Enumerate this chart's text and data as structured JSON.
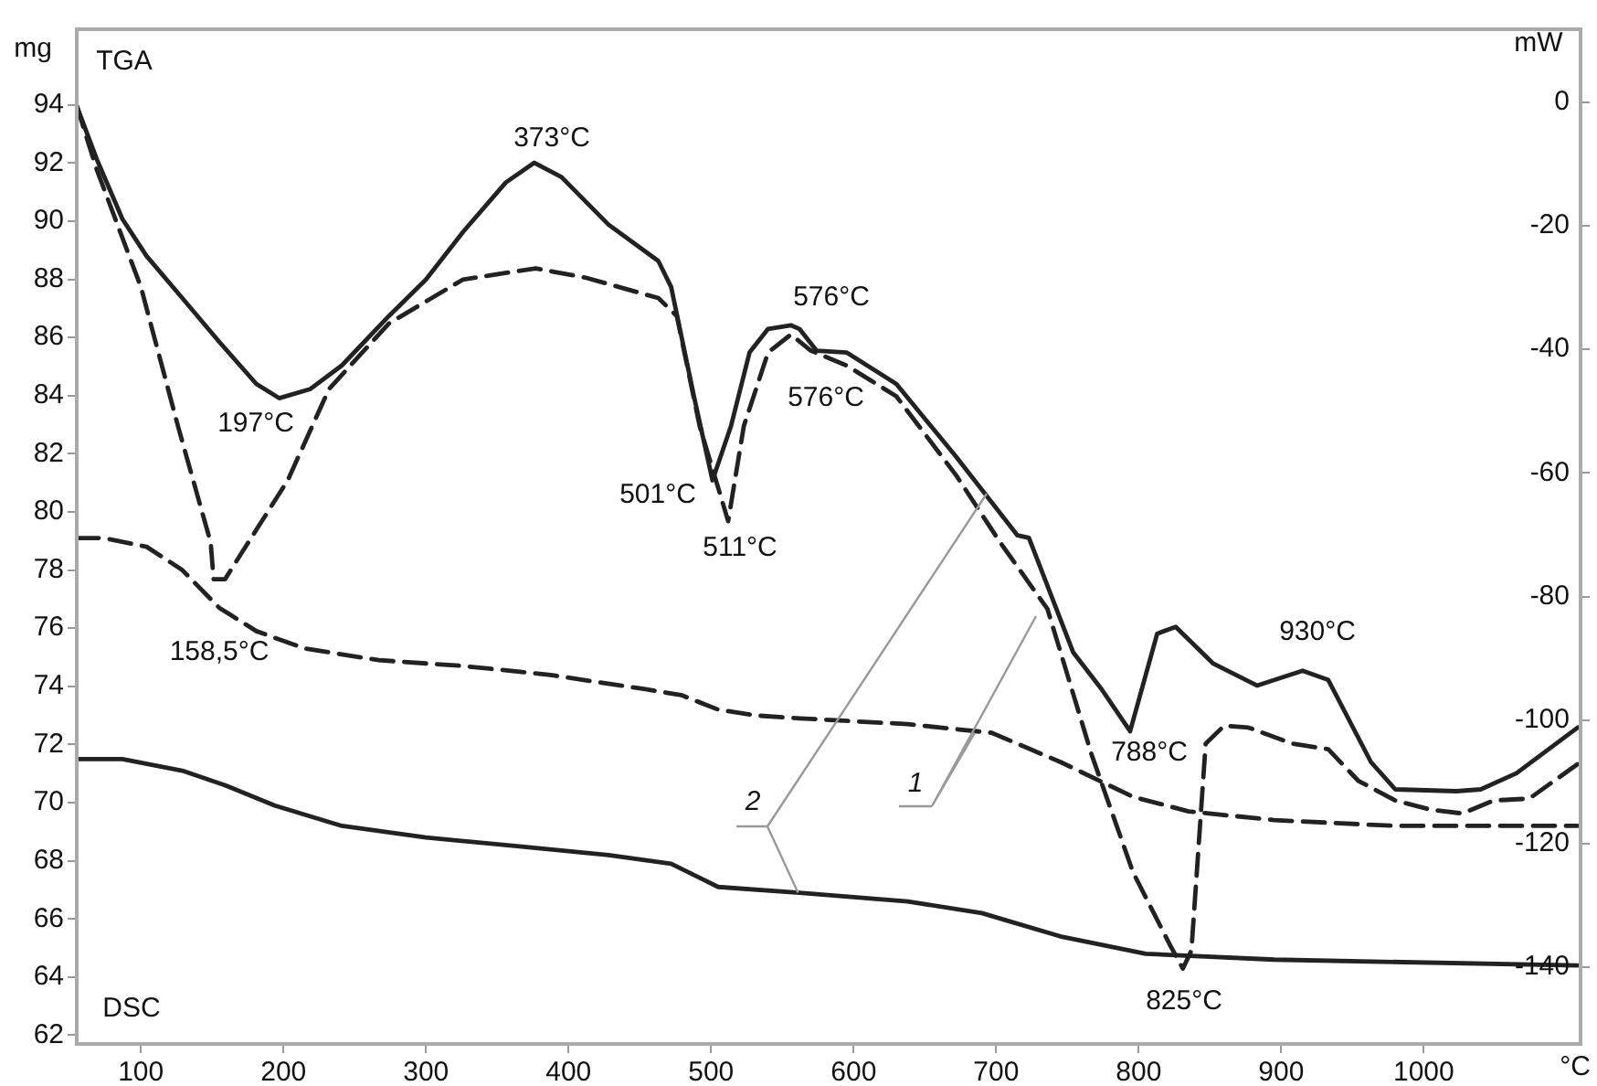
{
  "chart_data": {
    "type": "line",
    "xlabel": "°C",
    "ylabel": "mg",
    "y2label": "mW",
    "xlim": [
      55,
      1110
    ],
    "xticks": [
      100,
      200,
      300,
      400,
      500,
      600,
      700,
      800,
      900,
      1000
    ],
    "ylim": [
      61.7,
      96.6
    ],
    "yticks": [
      62,
      64,
      66,
      68,
      70,
      72,
      74,
      76,
      78,
      80,
      82,
      84,
      86,
      88,
      90,
      92,
      94
    ],
    "y2lim": [
      -152.4,
      11.8
    ],
    "y2ticks": [
      -140,
      -120,
      -100,
      -80,
      -60,
      -40,
      -20,
      0
    ],
    "grid": false,
    "legend": false,
    "marker": "none",
    "series": [
      {
        "color": "#222222",
        "axis": "y2",
        "line_style": "solid",
        "x": [
          55,
          69,
          87,
          104,
          129,
          155,
          181,
          197,
          219,
          241,
          274,
          300,
          326,
          356,
          376,
          395,
          428,
          463,
          472,
          488,
          501,
          514,
          527,
          540,
          556,
          562,
          574,
          595,
          630,
          672,
          715,
          723,
          754,
          774,
          794,
          813,
          826,
          852,
          883,
          915,
          933,
          963,
          980,
          1023,
          1040,
          1065,
          1108
        ],
        "values": [
          -0.6,
          -9.2,
          -18.9,
          -24.9,
          -31.7,
          -38.8,
          -45.6,
          -47.9,
          -46.4,
          -42.6,
          -34.6,
          -28.7,
          -21,
          -13,
          -9.8,
          -12.1,
          -19.8,
          -25.7,
          -29.9,
          -47.6,
          -61.2,
          -52.4,
          -40.5,
          -36.7,
          -36.1,
          -36.7,
          -40.2,
          -40.5,
          -45.6,
          -57.4,
          -70.1,
          -70.5,
          -89,
          -95,
          -101.8,
          -86,
          -84.9,
          -90.8,
          -94.4,
          -92,
          -93.5,
          -106.8,
          -111.2,
          -111.5,
          -111.2,
          -108.6,
          -101.2
        ]
      },
      {
        "color": "#222222",
        "axis": "y2",
        "line_style": "dashed",
        "x": [
          55,
          69,
          100,
          126,
          149,
          151,
          159,
          181,
          203,
          232,
          274,
          326,
          377,
          412,
          463,
          476,
          492,
          512,
          523,
          540,
          556,
          570,
          595,
          630,
          672,
          703,
          736,
          767,
          796,
          822,
          831,
          837,
          847,
          860,
          877,
          908,
          933,
          954,
          980,
          1005,
          1027,
          1049,
          1074,
          1108
        ],
        "values": [
          -0.6,
          -10.9,
          -29.9,
          -52.4,
          -71.3,
          -77.2,
          -77.2,
          -69.2,
          -61.2,
          -46.4,
          -35.8,
          -28.7,
          -26.9,
          -28.4,
          -31.7,
          -34.6,
          -52.4,
          -67.8,
          -52.4,
          -40.5,
          -37.6,
          -40.2,
          -42.6,
          -47.6,
          -60.4,
          -71.3,
          -82,
          -105.6,
          -124.6,
          -136.4,
          -140.2,
          -137.3,
          -103.8,
          -100.9,
          -101.2,
          -103.8,
          -104.7,
          -109.8,
          -113,
          -114.5,
          -115.1,
          -113,
          -112.7,
          -107.1
        ]
      },
      {
        "color": "#222222",
        "axis": "y",
        "line_style": "solid",
        "x": [
          55,
          87,
          129,
          159,
          194,
          241,
          300,
          364,
          428,
          472,
          505,
          562,
          638,
          690,
          745,
          805,
          895,
          1108
        ],
        "values": [
          71.5,
          71.5,
          71.1,
          70.6,
          69.9,
          69.2,
          68.8,
          68.5,
          68.2,
          67.9,
          67.1,
          66.9,
          66.6,
          66.2,
          65.4,
          64.8,
          64.6,
          64.4
        ]
      },
      {
        "color": "#222222",
        "axis": "y",
        "line_style": "dashed",
        "x": [
          55,
          74,
          104,
          129,
          155,
          181,
          215,
          267,
          326,
          386,
          454,
          479,
          505,
          531,
          562,
          638,
          697,
          745,
          796,
          835,
          895,
          980,
          1108
        ],
        "values": [
          79.1,
          79.1,
          78.8,
          78,
          76.7,
          75.9,
          75.3,
          74.9,
          74.7,
          74.4,
          73.9,
          73.7,
          73.2,
          73,
          72.9,
          72.7,
          72.4,
          71.4,
          70.2,
          69.7,
          69.4,
          69.2,
          69.2
        ]
      }
    ],
    "annotations": [
      "TGA",
      "DSC",
      "373°C",
      "197°C",
      "158,5°C",
      "501°C",
      "511°C",
      "576°C",
      "576°C",
      "788°C",
      "930°C",
      "825°C",
      {
        "text": "2",
        "x": 561,
        "y": 66.9
      },
      {
        "text": "1",
        "x": 685,
        "y": 72.4
      }
    ]
  }
}
